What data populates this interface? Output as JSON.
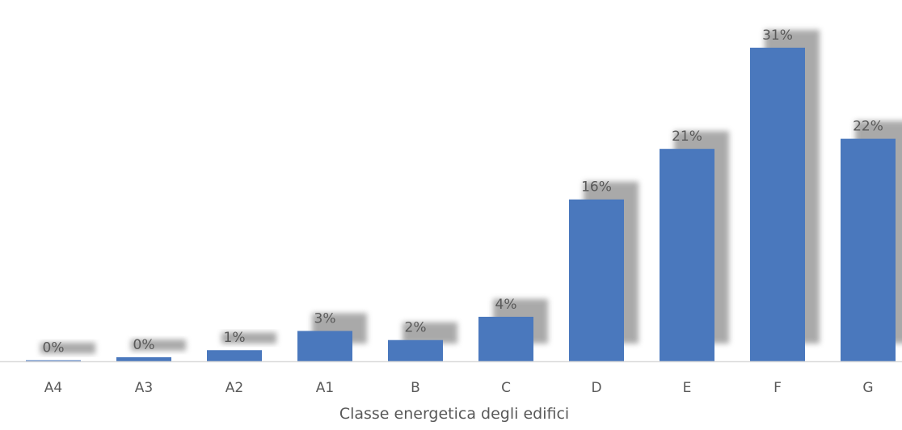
{
  "chart_data": {
    "type": "bar",
    "categories": [
      "A4",
      "A3",
      "A2",
      "A1",
      "B",
      "C",
      "D",
      "E",
      "F",
      "G"
    ],
    "values": [
      0.1,
      0.4,
      1.1,
      3.0,
      2.1,
      4.4,
      16.0,
      21.0,
      31.0,
      22.0
    ],
    "data_labels": [
      "0%",
      "0%",
      "1%",
      "3%",
      "2%",
      "4%",
      "16%",
      "21%",
      "31%",
      "22%"
    ],
    "title": "",
    "xlabel": "Classe energetica degli edifici",
    "ylabel": "",
    "ylim": [
      0,
      31.8
    ],
    "grid": false,
    "legend": "none",
    "bar_color": "#4a78bd",
    "shadow_color": "#9b9b9b",
    "axis_color": "#d9d9d9",
    "label_color": "#595959"
  }
}
